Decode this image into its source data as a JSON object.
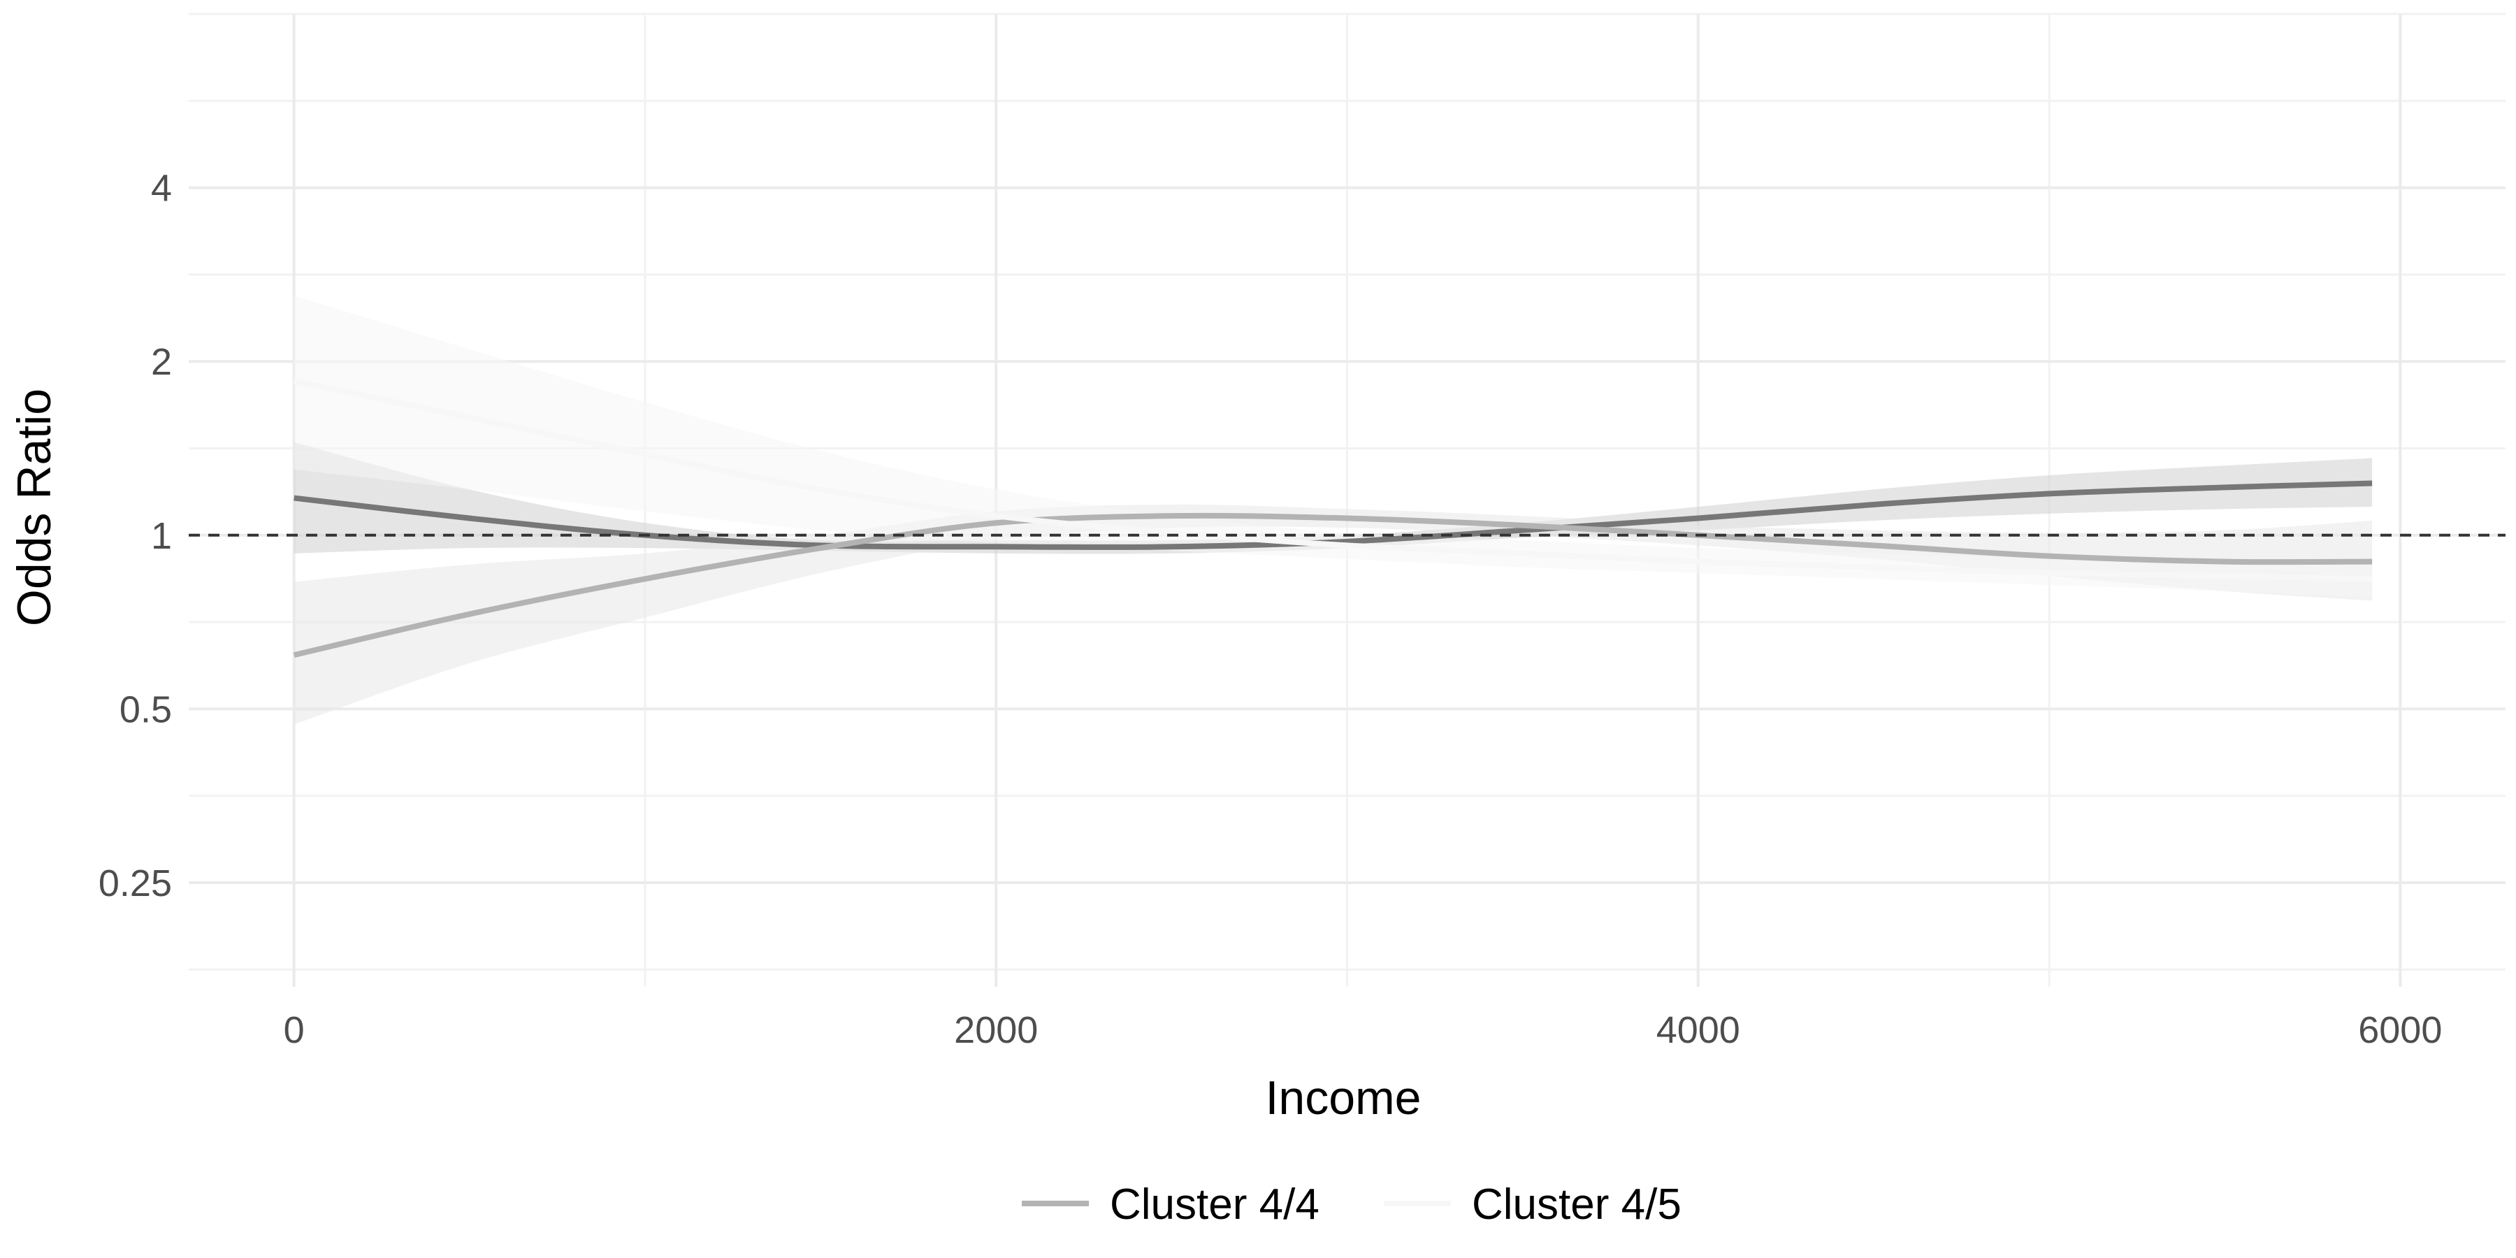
{
  "chart_data": {
    "type": "line",
    "xlabel": "Income",
    "ylabel": "Odds Ratio",
    "xlim": [
      -300,
      6300
    ],
    "ylim": [
      0.165,
      8
    ],
    "y_scale": "log2",
    "x_ticks": [
      0,
      2000,
      4000,
      6000
    ],
    "x_tick_labels": [
      "0",
      "2000",
      "4000",
      "6000"
    ],
    "y_ticks": [
      0.25,
      0.5,
      1,
      2,
      4
    ],
    "y_tick_labels": [
      "0.25",
      "0.5",
      "1",
      "2",
      "4"
    ],
    "reference_line": {
      "y": 1,
      "style": "dashed",
      "color": "#333333"
    },
    "grid": true,
    "legend_position": "bottom",
    "series": [
      {
        "name": "",
        "color": "#777777",
        "ribbon_color": "#d0d0d0",
        "x": [
          0,
          500,
          1000,
          1500,
          2000,
          2500,
          3000,
          3500,
          4000,
          4500,
          5000,
          5500,
          5920
        ],
        "y": [
          1.16,
          1.07,
          1.0,
          0.96,
          0.955,
          0.955,
          0.975,
          1.02,
          1.07,
          1.13,
          1.18,
          1.21,
          1.23
        ],
        "y_lower": [
          0.93,
          0.95,
          0.95,
          0.94,
          0.93,
          0.93,
          0.95,
          0.99,
          1.02,
          1.06,
          1.09,
          1.11,
          1.12
        ],
        "y_upper": [
          1.45,
          1.2,
          1.05,
          0.98,
          0.98,
          0.98,
          1.0,
          1.05,
          1.12,
          1.2,
          1.27,
          1.32,
          1.36
        ]
      },
      {
        "name": "Cluster 4/4",
        "color": "#b3b3b3",
        "ribbon_color": "#e8e8e8",
        "x": [
          0,
          500,
          1000,
          1500,
          2000,
          2500,
          3000,
          3500,
          4000,
          4500,
          5000,
          5500,
          5920
        ],
        "y": [
          0.62,
          0.73,
          0.84,
          0.95,
          1.05,
          1.08,
          1.07,
          1.04,
          1.0,
          0.96,
          0.92,
          0.9,
          0.9
        ],
        "y_lower": [
          0.47,
          0.6,
          0.72,
          0.86,
          0.98,
          1.03,
          1.03,
          1.0,
          0.96,
          0.91,
          0.85,
          0.8,
          0.77
        ],
        "y_upper": [
          0.83,
          0.89,
          0.93,
          1.0,
          1.1,
          1.13,
          1.11,
          1.08,
          1.04,
          1.02,
          1.01,
          1.02,
          1.06
        ]
      },
      {
        "name": "Cluster 4/5",
        "color": "#f7f7f7",
        "ribbon_color": "#f6f6f6",
        "x": [
          0,
          500,
          1000,
          1500,
          2000,
          2500,
          3000,
          3500,
          4000,
          4500,
          5000,
          5500,
          5920
        ],
        "y": [
          1.85,
          1.6,
          1.38,
          1.2,
          1.08,
          1.01,
          0.96,
          0.93,
          0.9,
          0.88,
          0.86,
          0.85,
          0.84
        ],
        "y_lower": [
          1.3,
          1.2,
          1.1,
          1.02,
          0.97,
          0.94,
          0.91,
          0.88,
          0.86,
          0.84,
          0.82,
          0.8,
          0.78
        ],
        "y_upper": [
          2.6,
          2.1,
          1.7,
          1.4,
          1.2,
          1.08,
          1.01,
          0.98,
          0.95,
          0.93,
          0.91,
          0.9,
          0.9
        ]
      }
    ]
  }
}
